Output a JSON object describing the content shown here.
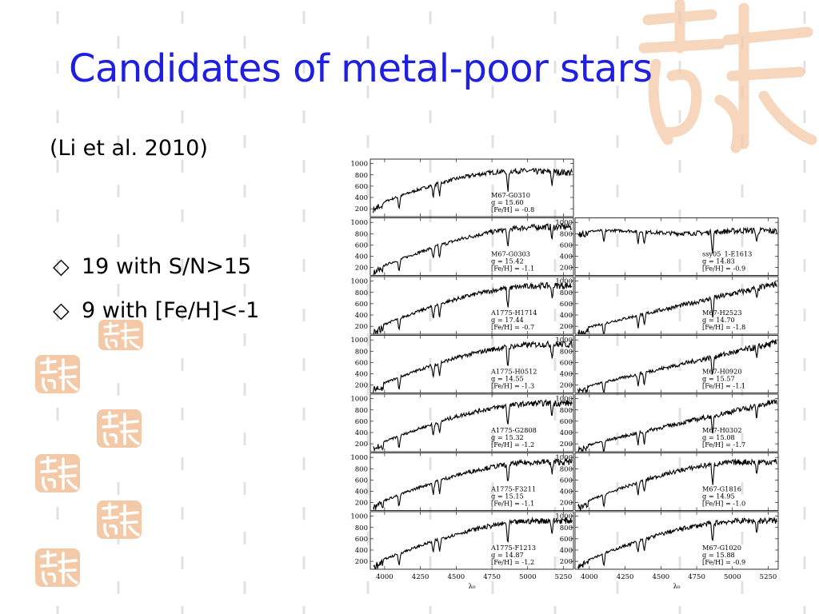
{
  "slide": {
    "title": "Candidates of metal-poor stars",
    "citation": "(Li et al. 2010)",
    "bullets": [
      {
        "marker": "◇",
        "text": "19 with S/N>15"
      },
      {
        "marker": "◇",
        "text": "9 with [Fe/H]<-1"
      }
    ],
    "decoration": {
      "seal_color": "#f4c9a8",
      "dash_color": "#e2e2e2",
      "title_color": "#1f1fe0"
    }
  },
  "chart_data": {
    "type": "line",
    "y_ticks": [
      200,
      400,
      600,
      800,
      1000
    ],
    "x_ticks": [
      4000,
      4250,
      4500,
      4750,
      5000,
      5250
    ],
    "xlim": [
      3900,
      5320
    ],
    "ylim": [
      60,
      1080
    ],
    "xlabel": "λ₀",
    "panels": [
      {
        "star": "M67-G0310",
        "g": "g = 15.60",
        "feh": "[Fe/H] = -0.8",
        "col": 0,
        "row": 0,
        "shape": "hump"
      },
      {
        "star": "M67-G0303",
        "g": "g = 15.42",
        "feh": "[Fe/H] = -1.1",
        "col": 0,
        "row": 1,
        "shape": "rise"
      },
      {
        "star": "ssy05_1-E1613",
        "g": "g = 14.83",
        "feh": "[Fe/H] = -0.9",
        "col": 1,
        "row": 1,
        "shape": "flat"
      },
      {
        "star": "A1775-H1714",
        "g": "g = 17.44",
        "feh": "[Fe/H] = -0.7",
        "col": 0,
        "row": 2,
        "shape": "rise"
      },
      {
        "star": "M67-H2523",
        "g": "g = 14.70",
        "feh": "[Fe/H] = -1.8",
        "col": 1,
        "row": 2,
        "shape": "steep"
      },
      {
        "star": "A1775-H0512",
        "g": "g = 14.55",
        "feh": "[Fe/H] = -1.3",
        "col": 0,
        "row": 3,
        "shape": "rise"
      },
      {
        "star": "M67-H0920",
        "g": "g = 15.57",
        "feh": "[Fe/H] = -1.1",
        "col": 1,
        "row": 3,
        "shape": "steep"
      },
      {
        "star": "A1775-G2808",
        "g": "g = 15.32",
        "feh": "[Fe/H] = -1.2",
        "col": 0,
        "row": 4,
        "shape": "rise"
      },
      {
        "star": "M67-H0302",
        "g": "g = 15.08",
        "feh": "[Fe/H] = -1.7",
        "col": 1,
        "row": 4,
        "shape": "steep"
      },
      {
        "star": "A1775-F3211",
        "g": "g = 15.15",
        "feh": "[Fe/H] = -1.1",
        "col": 0,
        "row": 5,
        "shape": "rise"
      },
      {
        "star": "M67-G1816",
        "g": "g = 14.95",
        "feh": "[Fe/H] = -1.0",
        "col": 1,
        "row": 5,
        "shape": "rise"
      },
      {
        "star": "A1775-F1213",
        "g": "g = 14.87",
        "feh": "[Fe/H] = -1.2",
        "col": 0,
        "row": 6,
        "shape": "rise"
      },
      {
        "star": "M67-G1020",
        "g": "g = 15.88",
        "feh": "[Fe/H] = -0.9",
        "col": 1,
        "row": 6,
        "shape": "rise"
      }
    ]
  }
}
